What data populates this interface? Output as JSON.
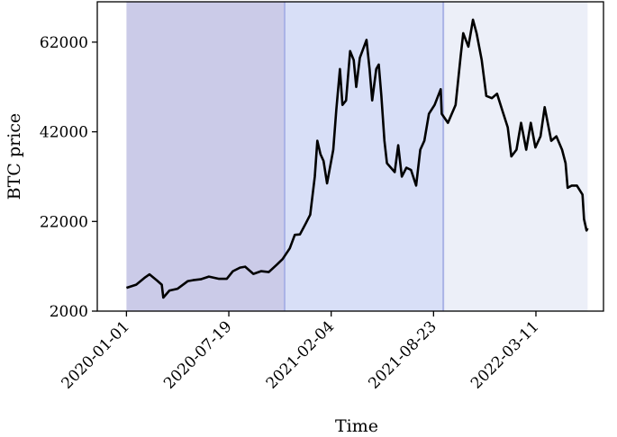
{
  "chart_data": {
    "type": "line",
    "title": "",
    "xlabel": "Time",
    "ylabel": "BTC price",
    "x_tick_labels": [
      "2020-01-01",
      "2020-07-19",
      "2021-02-04",
      "2021-08-23",
      "2022-03-11"
    ],
    "y_ticks": [
      2000,
      22000,
      42000,
      62000
    ],
    "y_tick_labels": [
      "2000",
      "22000",
      "42000",
      "62000"
    ],
    "ylim": [
      2000,
      71000
    ],
    "xlim": [
      "2019-11-05",
      "2022-07-21"
    ],
    "grid": false,
    "legend": "none",
    "shaded_regions": [
      {
        "start": "2020-01-01",
        "end": "2020-11-05",
        "color": "#cbcbe8"
      },
      {
        "start": "2020-11-05",
        "end": "2021-09-11",
        "color": "#d8dff7"
      },
      {
        "start": "2021-09-11",
        "end": "2022-06-20",
        "color": "#eceff8"
      }
    ],
    "series": [
      {
        "color": "#000000",
        "x": [
          "2020-01-01",
          "2020-01-20",
          "2020-02-05",
          "2020-02-15",
          "2020-03-01",
          "2020-03-10",
          "2020-03-13",
          "2020-03-25",
          "2020-04-10",
          "2020-04-30",
          "2020-05-10",
          "2020-05-25",
          "2020-06-10",
          "2020-06-30",
          "2020-07-15",
          "2020-07-27",
          "2020-08-10",
          "2020-08-20",
          "2020-09-05",
          "2020-09-20",
          "2020-10-05",
          "2020-10-21",
          "2020-11-01",
          "2020-11-15",
          "2020-11-25",
          "2020-12-05",
          "2020-12-16",
          "2020-12-25",
          "2021-01-03",
          "2021-01-08",
          "2021-01-14",
          "2021-01-20",
          "2021-01-27",
          "2021-02-08",
          "2021-02-14",
          "2021-02-21",
          "2021-02-26",
          "2021-03-05",
          "2021-03-13",
          "2021-03-20",
          "2021-03-25",
          "2021-04-01",
          "2021-04-14",
          "2021-04-20",
          "2021-04-25",
          "2021-05-03",
          "2021-05-08",
          "2021-05-13",
          "2021-05-19",
          "2021-05-24",
          "2021-06-08",
          "2021-06-15",
          "2021-06-22",
          "2021-07-01",
          "2021-07-10",
          "2021-07-20",
          "2021-07-28",
          "2021-08-05",
          "2021-08-14",
          "2021-08-25",
          "2021-09-06",
          "2021-09-08",
          "2021-09-20",
          "2021-10-05",
          "2021-10-15",
          "2021-10-20",
          "2021-10-30",
          "2021-11-08",
          "2021-11-15",
          "2021-11-25",
          "2021-12-04",
          "2021-12-15",
          "2021-12-25",
          "2022-01-05",
          "2022-01-15",
          "2022-01-22",
          "2022-02-01",
          "2022-02-10",
          "2022-02-20",
          "2022-03-01",
          "2022-03-10",
          "2022-03-20",
          "2022-03-28",
          "2022-04-10",
          "2022-04-20",
          "2022-05-01",
          "2022-05-08",
          "2022-05-12",
          "2022-05-20",
          "2022-05-30",
          "2022-06-10",
          "2022-06-13",
          "2022-06-18",
          "2022-06-20"
        ],
        "values": [
          7200,
          7900,
          9400,
          10200,
          8800,
          7900,
          5000,
          6600,
          7000,
          8700,
          8900,
          9100,
          9700,
          9200,
          9200,
          10900,
          11700,
          11900,
          10300,
          10900,
          10700,
          12400,
          13600,
          16000,
          19000,
          19100,
          21500,
          23500,
          32000,
          40000,
          37000,
          35500,
          30500,
          38000,
          47000,
          56000,
          48000,
          49000,
          60000,
          58000,
          52000,
          58500,
          62500,
          56000,
          49000,
          56000,
          57000,
          50000,
          40000,
          35000,
          33000,
          39000,
          32000,
          34000,
          33500,
          30000,
          38000,
          40000,
          46000,
          48000,
          51500,
          46000,
          44000,
          48000,
          59000,
          64000,
          61000,
          67000,
          64000,
          58000,
          50000,
          49500,
          50500,
          46500,
          43000,
          36500,
          38000,
          44000,
          38000,
          44000,
          38500,
          41000,
          47500,
          40000,
          41000,
          38000,
          35000,
          29500,
          30000,
          30000,
          28000,
          22500,
          20000,
          20500
        ]
      }
    ]
  }
}
